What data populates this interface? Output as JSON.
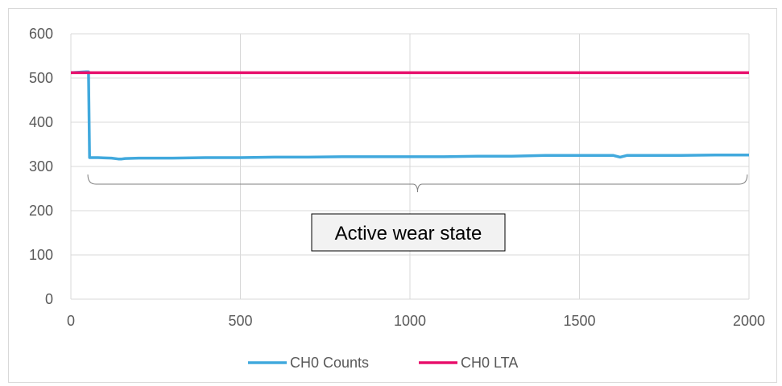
{
  "chart_data": {
    "type": "line",
    "title": "",
    "xlabel": "",
    "ylabel": "",
    "xlim": [
      0,
      2000
    ],
    "ylim": [
      0,
      600
    ],
    "x_ticks": [
      "0",
      "500",
      "1000",
      "1500",
      "2000"
    ],
    "y_ticks": [
      "0",
      "100",
      "200",
      "300",
      "400",
      "500",
      "600"
    ],
    "grid": "on",
    "legend_position": "bottom",
    "series": [
      {
        "name": "CH0 Counts",
        "color": "#41a9dd",
        "points": [
          [
            0,
            512
          ],
          [
            20,
            513
          ],
          [
            45,
            514
          ],
          [
            52,
            514
          ],
          [
            55,
            320
          ],
          [
            80,
            320
          ],
          [
            120,
            319
          ],
          [
            140,
            317
          ],
          [
            150,
            317
          ],
          [
            160,
            318
          ],
          [
            200,
            319
          ],
          [
            300,
            319
          ],
          [
            400,
            320
          ],
          [
            500,
            320
          ],
          [
            600,
            321
          ],
          [
            700,
            321
          ],
          [
            800,
            322
          ],
          [
            900,
            322
          ],
          [
            1000,
            322
          ],
          [
            1100,
            322
          ],
          [
            1200,
            323
          ],
          [
            1300,
            323
          ],
          [
            1400,
            325
          ],
          [
            1500,
            325
          ],
          [
            1600,
            325
          ],
          [
            1620,
            321
          ],
          [
            1640,
            325
          ],
          [
            1700,
            325
          ],
          [
            1800,
            325
          ],
          [
            1900,
            326
          ],
          [
            2000,
            326
          ]
        ]
      },
      {
        "name": "CH0 LTA",
        "color": "#e8106c",
        "points": [
          [
            0,
            512
          ],
          [
            2000,
            512
          ]
        ]
      }
    ],
    "annotations": [
      {
        "text": "Active wear state",
        "bracket_x": [
          50,
          1995
        ],
        "bracket_y": 300
      }
    ]
  }
}
